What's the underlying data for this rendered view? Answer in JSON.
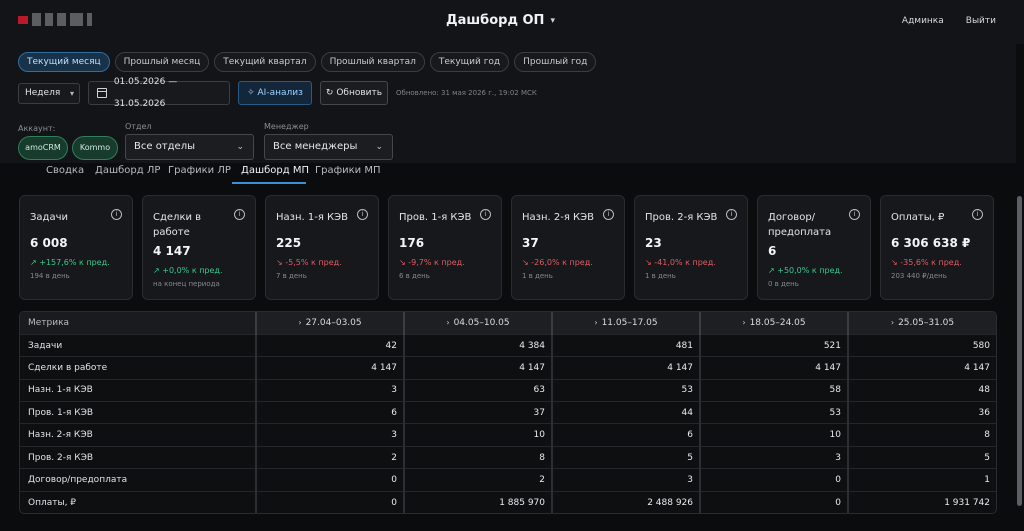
{
  "header": {
    "title": "Дашборд ОП",
    "nav": [
      "Админка",
      "Выйти"
    ]
  },
  "periods": [
    "Текущий месяц",
    "Прошлый месяц",
    "Текущий квартал",
    "Прошлый квартал",
    "Текущий год",
    "Прошлый год"
  ],
  "active_period": "Текущий месяц",
  "controls": {
    "granularity": "Неделя",
    "date_range": "01.05.2026 — 31.05.2026",
    "ai_label": "AI-анализ",
    "refresh_label": "Обновить",
    "updated": "Обновлено: 31 мая 2026 г., 19:02 МСК"
  },
  "filters": {
    "account_label": "Аккаунт:",
    "accounts": [
      "amoCRM",
      "Kommo"
    ],
    "department_label": "Отдел",
    "department_value": "Все отделы",
    "manager_label": "Менеджер",
    "manager_value": "Все менеджеры"
  },
  "tabs": [
    "Сводка",
    "Дашборд ЛР",
    "Графики ЛР",
    "Дашборд МП",
    "Графики МП"
  ],
  "active_tab": "Дашборд МП",
  "colors": {
    "accent": "#3b8fd6",
    "up": "#38c98d",
    "down": "#e05c63"
  },
  "cards": [
    {
      "title": "Задачи",
      "value": "6 008",
      "change": "+157,6% к пред.",
      "dir": "up",
      "sub": "194 в день"
    },
    {
      "title": "Сделки в работе",
      "value": "4 147",
      "change": "+0,0% к пред.",
      "dir": "up",
      "sub": "на конец периода"
    },
    {
      "title": "Назн. 1-я КЭВ",
      "value": "225",
      "change": "-5,5% к пред.",
      "dir": "down",
      "sub": "7 в день"
    },
    {
      "title": "Пров. 1-я КЭВ",
      "value": "176",
      "change": "-9,7% к пред.",
      "dir": "down",
      "sub": "6 в день"
    },
    {
      "title": "Назн. 2-я КЭВ",
      "value": "37",
      "change": "-26,0% к пред.",
      "dir": "down",
      "sub": "1 в день"
    },
    {
      "title": "Пров. 2-я КЭВ",
      "value": "23",
      "change": "-41,0% к пред.",
      "dir": "down",
      "sub": "1 в день"
    },
    {
      "title": "Договор/ предоплата",
      "value": "6",
      "change": "+50,0% к пред.",
      "dir": "up",
      "sub": "0 в день"
    },
    {
      "title": "Оплаты, ₽",
      "value": "6 306 638 ₽",
      "change": "-35,6% к пред.",
      "dir": "down",
      "sub": "203 440 ₽/день"
    }
  ],
  "table": {
    "metric_header": "Метрика",
    "weeks": [
      "27.04–03.05",
      "04.05–10.05",
      "11.05–17.05",
      "18.05–24.05",
      "25.05–31.05"
    ],
    "rows": [
      {
        "metric": "Задачи",
        "values": [
          "42",
          "4 384",
          "481",
          "521",
          "580"
        ]
      },
      {
        "metric": "Сделки в работе",
        "values": [
          "4 147",
          "4 147",
          "4 147",
          "4 147",
          "4 147"
        ]
      },
      {
        "metric": "Назн. 1-я КЭВ",
        "values": [
          "3",
          "63",
          "53",
          "58",
          "48"
        ]
      },
      {
        "metric": "Пров. 1-я КЭВ",
        "values": [
          "6",
          "37",
          "44",
          "53",
          "36"
        ]
      },
      {
        "metric": "Назн. 2-я КЭВ",
        "values": [
          "3",
          "10",
          "6",
          "10",
          "8"
        ]
      },
      {
        "metric": "Пров. 2-я КЭВ",
        "values": [
          "2",
          "8",
          "5",
          "3",
          "5"
        ]
      },
      {
        "metric": "Договор/предоплата",
        "values": [
          "0",
          "2",
          "3",
          "0",
          "1"
        ]
      },
      {
        "metric": "Оплаты, ₽",
        "values": [
          "0",
          "1 885 970",
          "2 488 926",
          "0",
          "1 931 742"
        ]
      }
    ]
  }
}
